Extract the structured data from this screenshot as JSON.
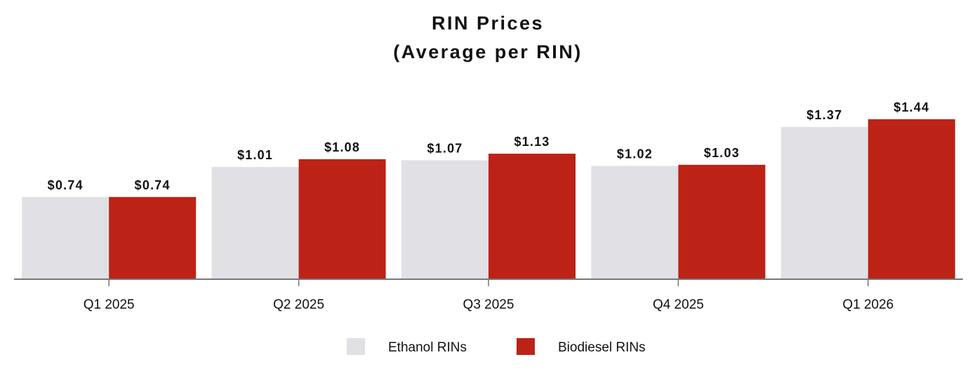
{
  "chart_data": {
    "type": "bar",
    "title_lines": [
      "RIN Prices",
      "(Average per RIN)"
    ],
    "categories": [
      "Q1 2025",
      "Q2 2025",
      "Q3 2025",
      "Q4 2025",
      "Q1 2026"
    ],
    "series": [
      {
        "name": "Ethanol RINs",
        "color": "#e0e0e5",
        "values": [
          0.74,
          1.01,
          1.07,
          1.02,
          1.37
        ],
        "labels": [
          "$0.74",
          "$1.01",
          "$1.07",
          "$1.02",
          "$1.37"
        ]
      },
      {
        "name": "Biodiesel RINs",
        "color": "#bd2217",
        "values": [
          0.74,
          1.08,
          1.13,
          1.03,
          1.44
        ],
        "labels": [
          "$0.74",
          "$1.08",
          "$1.13",
          "$1.03",
          "$1.44"
        ]
      }
    ],
    "xlabel": "",
    "ylabel": "",
    "ylim": [
      0,
      1.44
    ],
    "grid": false,
    "legend_position": "bottom-center",
    "axis_color": "#777777"
  }
}
